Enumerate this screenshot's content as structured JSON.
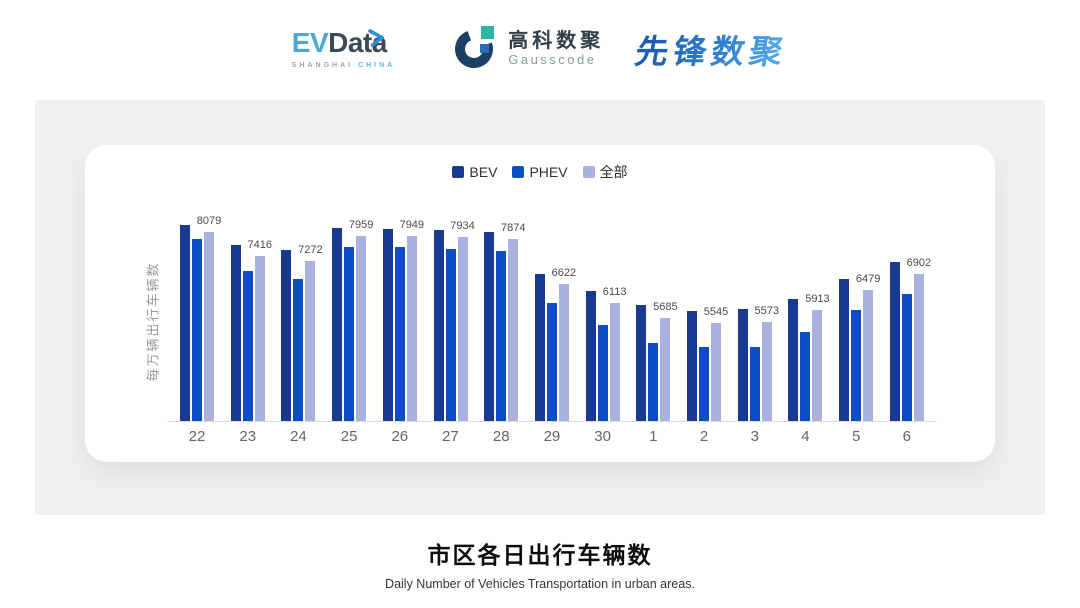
{
  "header": {
    "evdata": {
      "ev": "EV",
      "word": "Data",
      "sub_left": "SHANGHAI",
      "sub_right": "CHINA"
    },
    "gausscode": {
      "cn": "高科数聚",
      "en": "Gausscode"
    },
    "pioneer": {
      "text": "先锋数聚"
    }
  },
  "chart_data": {
    "type": "bar",
    "title": "市区各日出行车辆数",
    "subtitle": "Daily Number of Vehicles Transportation in urban areas.",
    "ylabel": "每万辆出行车辆数",
    "xlabel": "",
    "categories": [
      "22",
      "23",
      "24",
      "25",
      "26",
      "27",
      "28",
      "29",
      "30",
      "1",
      "2",
      "3",
      "4",
      "5",
      "6"
    ],
    "series": [
      {
        "name": "BEV",
        "color": "#18398f",
        "values": [
          8250,
          7700,
          7580,
          8175,
          8150,
          8130,
          8065,
          6920,
          6430,
          6040,
          5880,
          5930,
          6225,
          6775,
          7230
        ]
      },
      {
        "name": "PHEV",
        "color": "#0e4cc3",
        "values": [
          7875,
          6980,
          6775,
          7655,
          7645,
          7610,
          7550,
          6095,
          5490,
          4995,
          4895,
          4895,
          5315,
          5910,
          6370
        ]
      },
      {
        "name": "全部",
        "color": "#a9b2de",
        "values": [
          8079,
          7416,
          7272,
          7959,
          7949,
          7934,
          7874,
          6622,
          6113,
          5685,
          5545,
          5573,
          5913,
          6479,
          6902
        ]
      }
    ],
    "data_labels": [
      "8079",
      "7416",
      "7272",
      "7959",
      "7949",
      "7934",
      "7874",
      "6622",
      "6113",
      "5685",
      "5545",
      "5573",
      "5913",
      "6479",
      "6902"
    ],
    "label_series": "全部",
    "ylim": [
      2850,
      8400
    ],
    "legend_position": "top",
    "grid": false,
    "colors": {
      "axis_line": "#dcdcdc",
      "tick_text": "#666666",
      "label_text": "#4a4a4a"
    }
  },
  "caption": {
    "title": "市区各日出行车辆数",
    "subtitle": "Daily Number of Vehicles Transportation in urban areas."
  }
}
